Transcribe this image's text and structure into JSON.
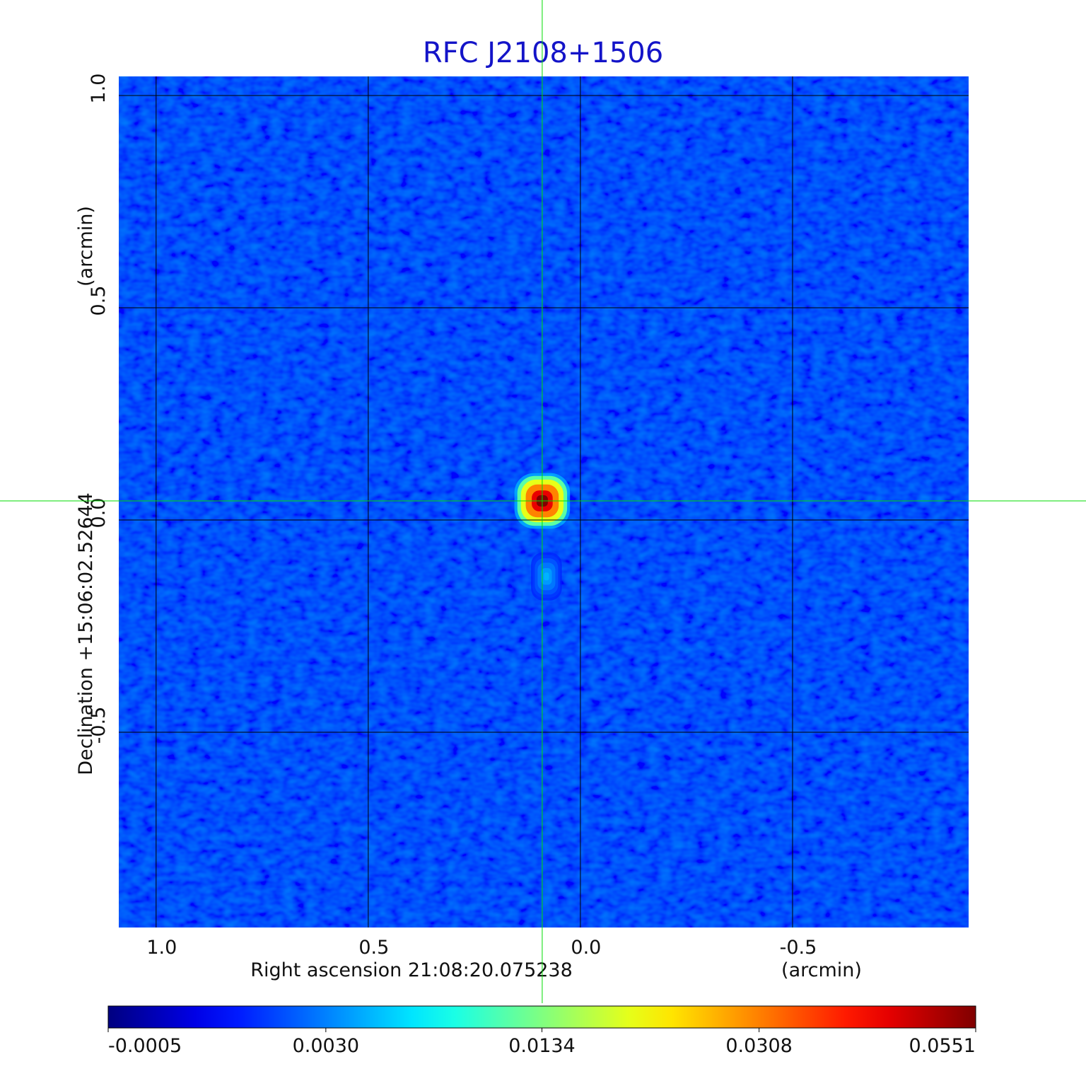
{
  "chart_data": {
    "type": "image",
    "title": "RFC J2108+1506",
    "xlabel": "Right ascension  21:08:20.075238",
    "xunit": "(arcmin)",
    "ylabel": "Declination  +15:06:02.52644",
    "yunit": "(arcmin)",
    "xlim": [
      1.088,
      -0.915
    ],
    "ylim": [
      -0.96,
      1.045
    ],
    "xticks": [
      {
        "value": 1,
        "label": "1.0"
      },
      0.5,
      {
        "value": 0,
        "label": "0.0"
      },
      -0.5
    ],
    "yticks": [
      {
        "value": 1,
        "label": "1.0"
      },
      0.5,
      {
        "value": 0,
        "label": "0.0"
      },
      -0.5
    ],
    "grid": true,
    "colormap": "jet",
    "colorscale": "sqrt",
    "clim": [
      -0.0005,
      0.0551
    ],
    "cticks": [
      -0.0005,
      {
        "value": 0.003,
        "label": "0.0030"
      },
      0.0134,
      0.0308,
      0.0551
    ],
    "background_level": 0.0005,
    "sources": [
      {
        "x": 0.09,
        "y": 0.045,
        "peak": 0.0551
      },
      {
        "x": 0.08,
        "y": -0.133,
        "peak": 0.0045
      }
    ],
    "crosshair": {
      "x": 0.09,
      "y": 0.045,
      "color": "#00dd00"
    }
  }
}
